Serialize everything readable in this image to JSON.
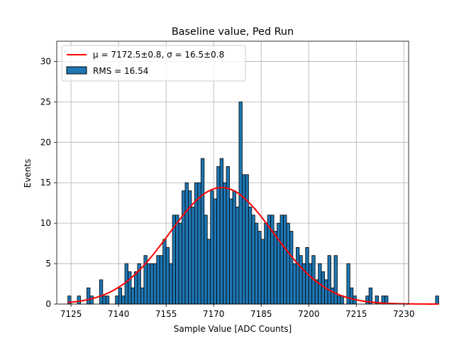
{
  "chart_data": {
    "type": "bar",
    "title": "Baseline value, Ped Run",
    "xlabel": "Sample Value [ADC Counts]",
    "ylabel": "Events",
    "xlim": [
      7120.5,
      7231.5
    ],
    "ylim": [
      0,
      32.5
    ],
    "xticks": [
      7125,
      7140,
      7155,
      7170,
      7185,
      7200,
      7215,
      7230
    ],
    "yticks": [
      0,
      5,
      10,
      15,
      20,
      25,
      30
    ],
    "grid": true,
    "legend_position": "top-left",
    "bin_width": 1,
    "bins_start": 7124,
    "counts": [
      1,
      0,
      0,
      1,
      0,
      0,
      2,
      1,
      0,
      0,
      3,
      1,
      1,
      0,
      0,
      1,
      2,
      1,
      5,
      4,
      2,
      4,
      5,
      2,
      6,
      5,
      5,
      5,
      6,
      6,
      8,
      7,
      5,
      11,
      11,
      10,
      14,
      15,
      14,
      12,
      15,
      15,
      18,
      11,
      8,
      14,
      13,
      17,
      18,
      15,
      17,
      13,
      14,
      12,
      25,
      16,
      16,
      12,
      11,
      10,
      9,
      8,
      10,
      11,
      11,
      9,
      10,
      11,
      11,
      10,
      9,
      5,
      7,
      6,
      5,
      7,
      5,
      6,
      3,
      5,
      4,
      3,
      6,
      2,
      6,
      1,
      1,
      0,
      5,
      2,
      1,
      0,
      0,
      0,
      1,
      2,
      0,
      1,
      0,
      1,
      1,
      0,
      0,
      0,
      0,
      0,
      0,
      0,
      0,
      0,
      0,
      0,
      0,
      0,
      0,
      0,
      1
    ],
    "fit": {
      "mu": 7172.5,
      "sigma": 16.5,
      "amplitude": 14.4
    },
    "series": [
      {
        "name": "$\\mu = 7172.5{\\pm}0.8, \\sigma = 16.5{\\pm}0.8$",
        "label_text": "μ = 7172.5±0.8, σ = 16.5±0.8",
        "kind": "line",
        "color": "#ff0000"
      },
      {
        "name": "RMS = 16.54",
        "label_text": "RMS = 16.54",
        "kind": "bar",
        "color": "#1f77b4",
        "edge_color": "#000000"
      }
    ]
  }
}
